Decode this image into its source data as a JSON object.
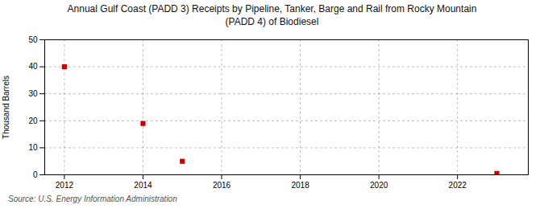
{
  "chart_data": {
    "type": "scatter",
    "title": "Annual Gulf Coast (PADD 3) Receipts by Pipeline, Tanker, Barge and Rail from Rocky Mountain\n(PADD 4) of Biodiesel",
    "ylabel": "Thousand Barrels",
    "source": "Source: U.S. Energy Information Administration",
    "x": [
      2012,
      2014,
      2015,
      2023
    ],
    "values": [
      40,
      19,
      5,
      0.5
    ],
    "color": "#cc0000",
    "marker": "square",
    "xlim": [
      2011.5,
      2023.8
    ],
    "ylim": [
      0,
      50
    ],
    "xticks": [
      2012,
      2014,
      2016,
      2018,
      2020,
      2022
    ],
    "yticks": [
      0,
      10,
      20,
      30,
      40,
      50
    ],
    "grid": true
  }
}
